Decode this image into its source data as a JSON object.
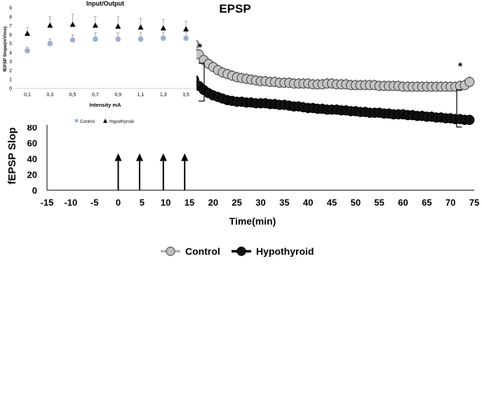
{
  "chart_data": [
    {
      "type": "scatter",
      "title": "EPSP",
      "xlabel": "Time(min)",
      "ylabel": "fEPSP Slop",
      "x_ticks": [
        "-15",
        "-10",
        "-5",
        "0",
        "5",
        "10",
        "15",
        "20",
        "25",
        "30",
        "35",
        "40",
        "45",
        "50",
        "55",
        "60",
        "65",
        "70",
        "75"
      ],
      "y_ticks": [
        "0",
        "20",
        "40",
        "60",
        "80"
      ],
      "xlim": [
        -15,
        75
      ],
      "ylim": [
        0,
        80
      ],
      "stimulus_times": [
        0,
        4.5,
        9.5,
        14
      ],
      "stimulus_height": 45,
      "annotations": [
        "*",
        "*"
      ],
      "legend_position": "bottom",
      "series": [
        {
          "name": "Control",
          "color": "#b3b3b3",
          "start": 16,
          "end": 74,
          "step": 1,
          "values": [
            185,
            172,
            165,
            160,
            156,
            152,
            149,
            147,
            145,
            143,
            142,
            141,
            140,
            139,
            138,
            138,
            137,
            137,
            136,
            136,
            136,
            135,
            135,
            135,
            135,
            134,
            134,
            134,
            135,
            135,
            134,
            134,
            134,
            133,
            133,
            133,
            133,
            133,
            133,
            132,
            132,
            132,
            132,
            132,
            131,
            131,
            131,
            131,
            131,
            131,
            131,
            131,
            131,
            131,
            131,
            131,
            132,
            133,
            137
          ]
        },
        {
          "name": "Hypothyroid",
          "color": "#000000",
          "start": 16,
          "end": 74,
          "step": 1,
          "values": [
            140,
            132,
            127,
            123,
            120,
            118,
            116,
            114,
            113,
            112,
            112,
            111,
            111,
            110,
            110,
            110,
            109,
            109,
            108,
            108,
            107,
            106,
            106,
            105,
            104,
            104,
            103,
            103,
            102,
            102,
            102,
            101,
            101,
            100,
            100,
            99,
            99,
            98,
            98,
            98,
            97,
            97,
            96,
            96,
            96,
            95,
            95,
            94,
            94,
            93,
            93,
            92,
            92,
            91,
            91,
            90,
            90,
            89,
            89
          ]
        }
      ]
    },
    {
      "type": "scatter",
      "title": "Input/Output",
      "xlabel": "Intensity mA",
      "ylabel": "fEPSP Slope(mV/ms)",
      "categories": [
        "0,1",
        "0,3",
        "0,5",
        "0,7",
        "0,9",
        "1,1",
        "1,3",
        "1,5"
      ],
      "y_ticks": [
        "0",
        "1",
        "2",
        "3",
        "4",
        "5",
        "6",
        "7",
        "8",
        "9"
      ],
      "ylim": [
        0,
        9
      ],
      "legend_position": "bottom",
      "series": [
        {
          "name": "Control",
          "color": "#9ab0cc",
          "marker": "circle",
          "values": [
            4.2,
            5.0,
            5.4,
            5.5,
            5.5,
            5.5,
            5.6,
            5.6
          ],
          "errors": [
            0.4,
            0.5,
            0.6,
            0.7,
            0.7,
            0.7,
            0.6,
            0.7
          ]
        },
        {
          "name": "Hypothyroid",
          "color": "#000000",
          "marker": "triangle",
          "values": [
            6.1,
            7.0,
            7.1,
            7.0,
            6.9,
            6.8,
            6.7,
            6.6
          ],
          "errors": [
            0.7,
            1.0,
            1.2,
            1.0,
            1.1,
            1.0,
            1.0,
            0.9
          ]
        }
      ]
    }
  ]
}
